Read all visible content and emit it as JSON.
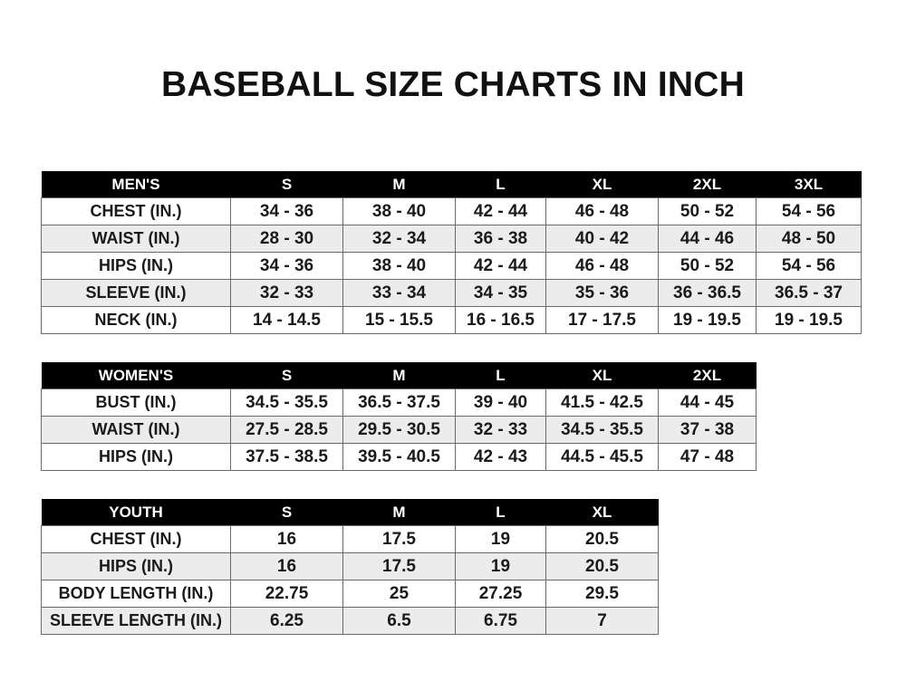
{
  "title": "BASEBALL SIZE CHARTS IN INCH",
  "men": {
    "header": [
      "MEN'S",
      "S",
      "M",
      "L",
      "XL",
      "2XL",
      "3XL"
    ],
    "rows": [
      [
        "CHEST (IN.)",
        "34 - 36",
        "38 - 40",
        "42 - 44",
        "46 - 48",
        "50 - 52",
        "54 - 56"
      ],
      [
        "WAIST (IN.)",
        "28 - 30",
        "32 - 34",
        "36 - 38",
        "40 - 42",
        "44 - 46",
        "48 - 50"
      ],
      [
        "HIPS (IN.)",
        "34 - 36",
        "38 - 40",
        "42 - 44",
        "46 - 48",
        "50 - 52",
        "54 - 56"
      ],
      [
        "SLEEVE (IN.)",
        "32 - 33",
        "33 - 34",
        "34 - 35",
        "35 - 36",
        "36 - 36.5",
        "36.5 - 37"
      ],
      [
        "NECK (IN.)",
        "14 - 14.5",
        "15 - 15.5",
        "16 - 16.5",
        "17 - 17.5",
        "19 - 19.5",
        "19 - 19.5"
      ]
    ]
  },
  "women": {
    "header": [
      "WOMEN'S",
      "S",
      "M",
      "L",
      "XL",
      "2XL"
    ],
    "rows": [
      [
        "BUST (IN.)",
        "34.5 - 35.5",
        "36.5 - 37.5",
        "39 - 40",
        "41.5 - 42.5",
        "44 - 45"
      ],
      [
        "WAIST (IN.)",
        "27.5 - 28.5",
        "29.5 - 30.5",
        "32 - 33",
        "34.5 - 35.5",
        "37 - 38"
      ],
      [
        "HIPS (IN.)",
        "37.5 - 38.5",
        "39.5 - 40.5",
        "42 - 43",
        "44.5 - 45.5",
        "47 - 48"
      ]
    ]
  },
  "youth": {
    "header": [
      "YOUTH",
      "S",
      "M",
      "L",
      "XL"
    ],
    "rows": [
      [
        "CHEST (IN.)",
        "16",
        "17.5",
        "19",
        "20.5"
      ],
      [
        "HIPS (IN.)",
        "16",
        "17.5",
        "19",
        "20.5"
      ],
      [
        "BODY LENGTH (IN.)",
        "22.75",
        "25",
        "27.25",
        "29.5"
      ],
      [
        "SLEEVE LENGTH (IN.)",
        "6.25",
        "6.5",
        "6.75",
        "7"
      ]
    ]
  }
}
